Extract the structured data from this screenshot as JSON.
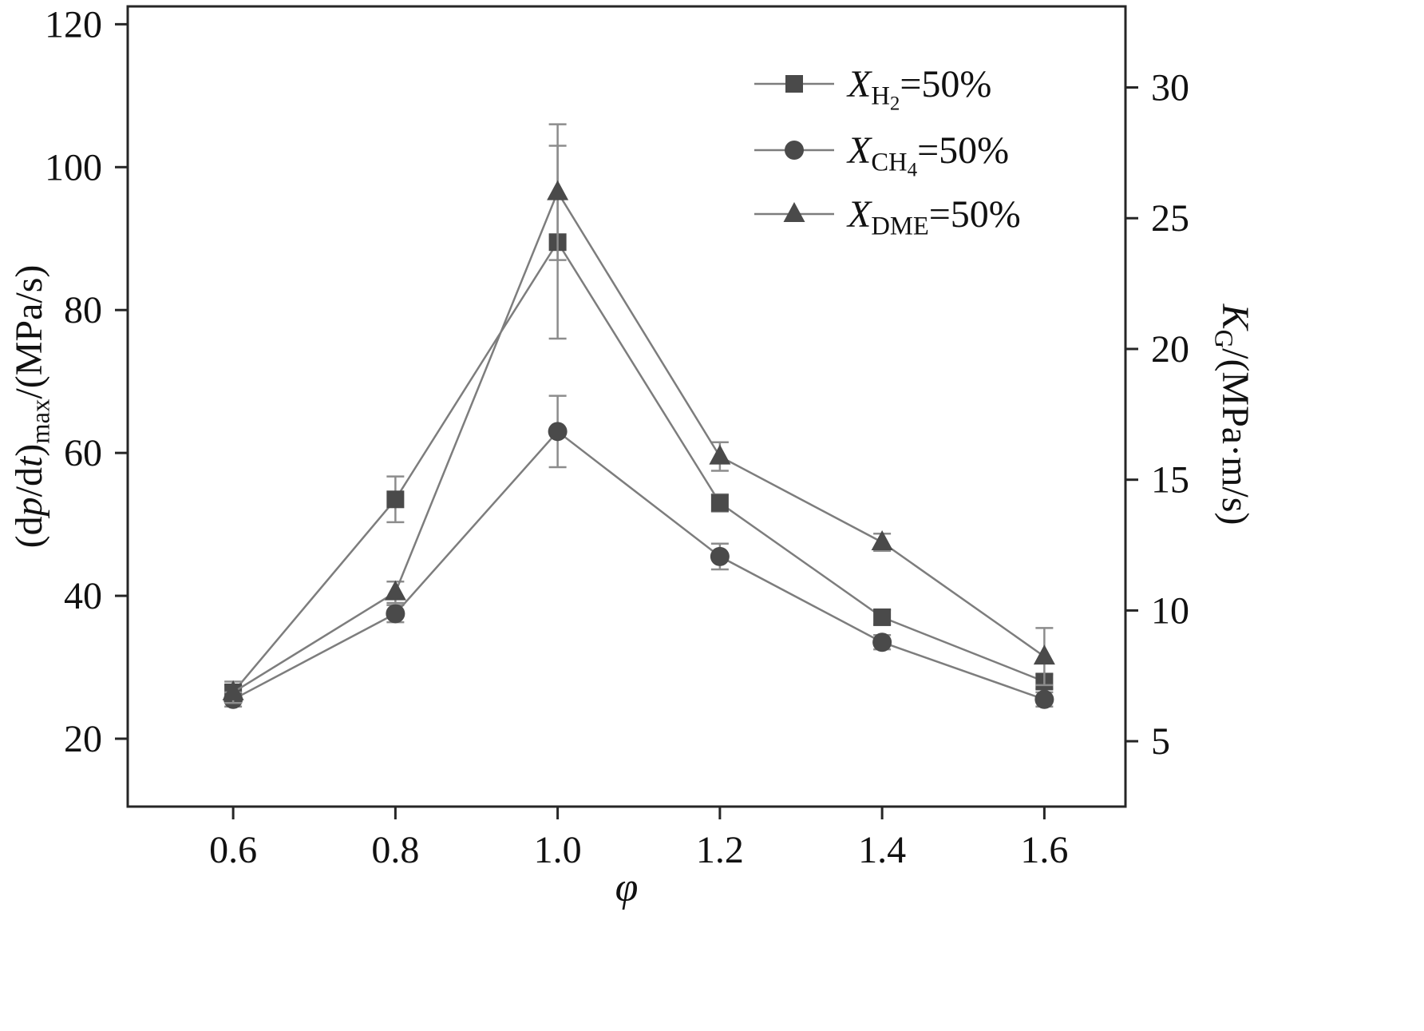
{
  "style": {
    "background": "#ffffff",
    "marker_fill": "#4a4a4a",
    "line_color": "#7d7d7d",
    "error_color": "#8c8c8c",
    "frame_color": "#262626",
    "text_color": "#111111"
  },
  "chart_data": {
    "type": "line",
    "title": "",
    "grid": false,
    "legend_position": "upper right inside",
    "x": [
      0.6,
      0.8,
      1.0,
      1.2,
      1.4,
      1.6
    ],
    "x_tick_labels": [
      "0.6",
      "0.8",
      "1.0",
      "1.2",
      "1.4",
      "1.6"
    ],
    "xlim": [
      0.47,
      1.7
    ],
    "xlabel_runs": [
      {
        "t": "φ",
        "i": true
      }
    ],
    "left_axis": {
      "lim": [
        10.5,
        122.5
      ],
      "ticks": [
        20,
        40,
        60,
        80,
        100,
        120
      ],
      "label_text": "(dp/dt)max/(MPa/s)",
      "label_runs": [
        {
          "t": "(d"
        },
        {
          "t": "p",
          "i": true
        },
        {
          "t": "/d"
        },
        {
          "t": "t",
          "i": true
        },
        {
          "t": ")"
        },
        {
          "t": "max",
          "sub": 1
        },
        {
          "t": "/(MPa/s)"
        }
      ]
    },
    "right_axis": {
      "lim": [
        2.5,
        33.1
      ],
      "ticks": [
        5,
        10,
        15,
        20,
        25,
        30
      ],
      "label_text": "KG/(MPa·m/s)",
      "label_runs": [
        {
          "t": "K",
          "i": true
        },
        {
          "t": "G",
          "sub": 1
        },
        {
          "t": "/(MPa·m/s)"
        }
      ]
    },
    "series": [
      {
        "name": "XH2=50%",
        "marker": "square",
        "legend_runs": [
          {
            "t": "X",
            "i": true
          },
          {
            "t": "H",
            "sub": 1
          },
          {
            "t": "2",
            "sub": 2
          },
          {
            "t": "=50%"
          }
        ],
        "values": [
          26.5,
          53.5,
          89.5,
          53,
          37,
          28
        ],
        "errors": [
          1,
          3.2,
          13.5,
          1.2,
          1,
          1
        ]
      },
      {
        "name": "XCH4=50%",
        "marker": "circle",
        "legend_runs": [
          {
            "t": "X",
            "i": true
          },
          {
            "t": "CH",
            "sub": 1
          },
          {
            "t": "4",
            "sub": 2
          },
          {
            "t": "=50%"
          }
        ],
        "values": [
          25.5,
          37.5,
          63,
          45.5,
          33.5,
          25.5
        ],
        "errors": [
          1,
          1.2,
          5,
          1.8,
          1,
          1
        ]
      },
      {
        "name": "XDME=50%",
        "marker": "triangle",
        "legend_runs": [
          {
            "t": "X",
            "i": true
          },
          {
            "t": "DME",
            "sub": 1
          },
          {
            "t": "=50%"
          }
        ],
        "values": [
          26.5,
          40.5,
          96.5,
          59.5,
          47.5,
          31.5
        ],
        "errors": [
          1.5,
          1.5,
          9.5,
          2,
          1.2,
          4
        ]
      }
    ]
  }
}
